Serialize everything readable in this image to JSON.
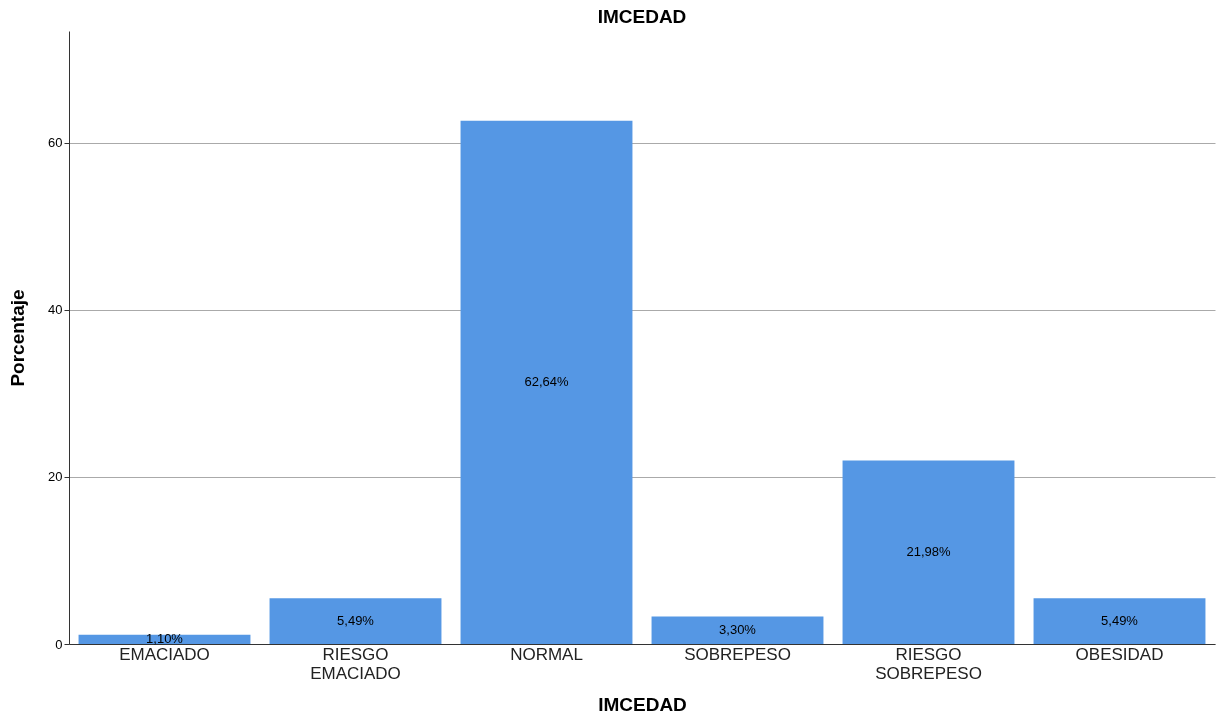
{
  "chart_data": {
    "type": "bar",
    "title": "IMCEDAD",
    "xlabel": "IMCEDAD",
    "ylabel": "Porcentaje",
    "categories": [
      "EMACIADO",
      "RIESGO EMACIADO",
      "NORMAL",
      "SOBREPESO",
      "RIESGO SOBREPESO",
      "OBESIDAD"
    ],
    "values": [
      1.1,
      5.49,
      62.64,
      3.3,
      21.98,
      5.49
    ],
    "value_labels": [
      "1,10%",
      "5,49%",
      "62,64%",
      "3,30%",
      "21,98%",
      "5,49%"
    ],
    "color": "#5597e4",
    "ylim": [
      0,
      73.4
    ],
    "yticks": [
      0,
      20,
      40,
      60
    ],
    "grid": "y"
  }
}
